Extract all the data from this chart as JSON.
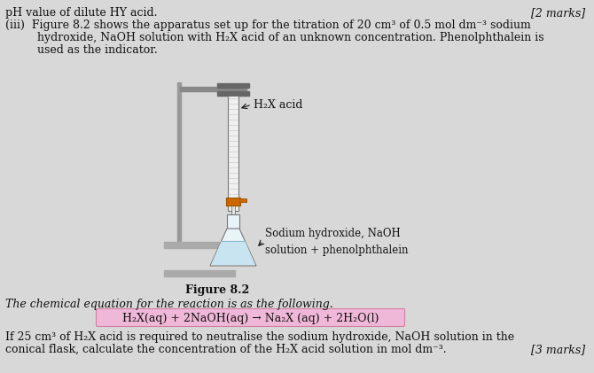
{
  "bg_color": "#d8d8d8",
  "title_line1": "pH value of dilute HY acid.",
  "marks_line1": "[2 marks]",
  "para_iii_a": "(iii)  Figure 8.2 shows the apparatus set up for the titration of 20 cm³ of 0.5 mol dm⁻³ sodium",
  "para_iii_b": "         hydroxide, NaOH solution with H₂X acid of an unknown concentration. Phenolphthalein is",
  "para_iii_c": "         used as the indicator.",
  "fig_caption": "Figure 8.2",
  "label_acid": "H₂X acid",
  "label_naoh1": "Sodium hydroxide, NaOH",
  "label_naoh2": "solution + phenolphthalein",
  "chem_intro": "The chemical equation for the reaction is as the following.",
  "chem_eq": "H₂X(aq) + 2NaOH(aq) → Na₂X (aq) + 2H₂O(l)",
  "final_a": "If 25 cm³ of H₂X acid is required to neutralise the sodium hydroxide, NaOH solution in the",
  "final_b": "conical flask, calculate the concentration of the H₂X acid solution in mol dm⁻³.",
  "marks_final": "[3 marks]",
  "highlight_color": "#f0b8d8",
  "highlight_border": "#d080a0",
  "text_color": "#111111",
  "fs": 9.0
}
